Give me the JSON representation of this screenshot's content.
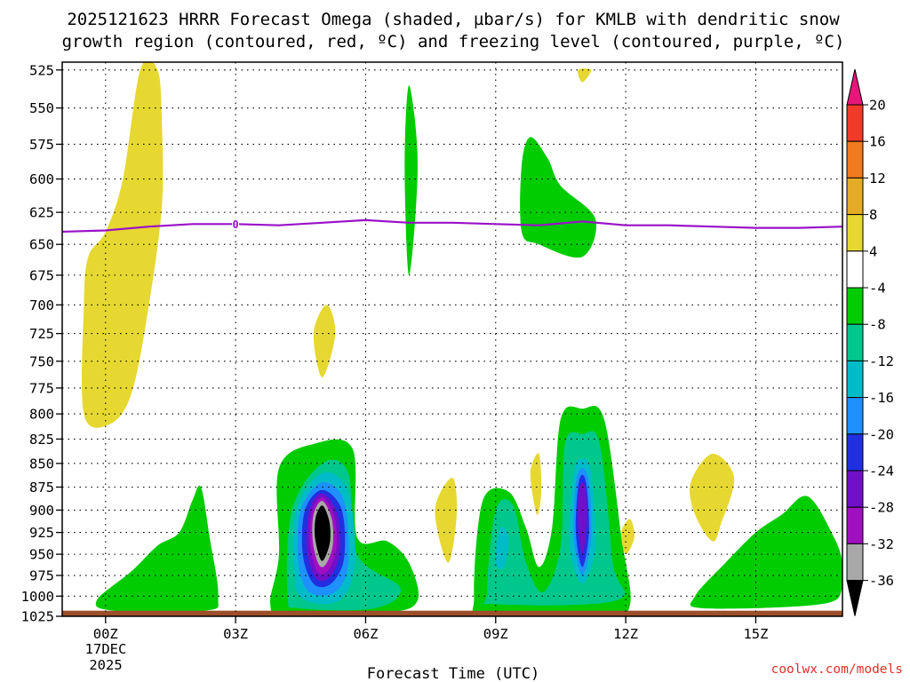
{
  "chart_data": {
    "type": "heatmap",
    "title_line1": "2025121623 HRRR Forecast Omega (shaded, µbar/s) for KMLB with dendritic snow",
    "title_line2": "growth region (contoured, red, ºC) and freezing level (contoured, purple, ºC)",
    "xlabel": "Forecast Time (UTC)",
    "ylabel": "",
    "x_ticks": [
      "00Z",
      "03Z",
      "06Z",
      "09Z",
      "12Z",
      "15Z"
    ],
    "x_tick_hours": [
      0,
      3,
      6,
      9,
      12,
      15
    ],
    "x_date_line1": "17DEC",
    "x_date_line2": "2025",
    "xlim_hours": [
      -1,
      17
    ],
    "y_ticks": [
      525,
      550,
      575,
      600,
      625,
      650,
      675,
      700,
      725,
      750,
      775,
      800,
      825,
      850,
      875,
      900,
      925,
      950,
      975,
      1000,
      1025
    ],
    "ylim_hPa": [
      1025,
      520
    ],
    "y_scale": "log-pressure",
    "colorbar": {
      "labels": [
        "20",
        "16",
        "12",
        "8",
        "4",
        "-4",
        "-8",
        "-12",
        "-16",
        "-20",
        "-24",
        "-28",
        "-32",
        "-36"
      ],
      "bins": [
        {
          "from": 20,
          "to": null,
          "color": "#e8157a"
        },
        {
          "from": 16,
          "to": 20,
          "color": "#f03a2a"
        },
        {
          "from": 12,
          "to": 16,
          "color": "#f07a1e"
        },
        {
          "from": 8,
          "to": 12,
          "color": "#e4ac24"
        },
        {
          "from": 4,
          "to": 8,
          "color": "#e6d830"
        },
        {
          "from": -4,
          "to": 4,
          "color": "#ffffff"
        },
        {
          "from": -8,
          "to": -4,
          "color": "#00cc00"
        },
        {
          "from": -12,
          "to": -8,
          "color": "#00c88c"
        },
        {
          "from": -16,
          "to": -12,
          "color": "#00bcc8"
        },
        {
          "from": -20,
          "to": -16,
          "color": "#1e90ff"
        },
        {
          "from": -24,
          "to": -20,
          "color": "#2030e0"
        },
        {
          "from": -28,
          "to": -24,
          "color": "#7010c8"
        },
        {
          "from": -32,
          "to": -28,
          "color": "#a010c0"
        },
        {
          "from": -36,
          "to": -32,
          "color": "#a8a8a8"
        },
        {
          "from": null,
          "to": -36,
          "color": "#000000"
        }
      ]
    },
    "freezing_level": {
      "color": "#9a10c8",
      "points_hour_hpa": [
        [
          -1,
          640
        ],
        [
          0,
          639
        ],
        [
          1,
          636
        ],
        [
          2,
          634
        ],
        [
          3,
          634
        ],
        [
          4,
          635
        ],
        [
          5,
          633
        ],
        [
          6,
          631
        ],
        [
          7,
          633
        ],
        [
          8,
          633
        ],
        [
          9,
          634
        ],
        [
          10,
          635
        ],
        [
          11,
          632
        ],
        [
          12,
          635
        ],
        [
          13,
          635
        ],
        [
          14,
          636
        ],
        [
          15,
          637
        ],
        [
          16,
          637
        ],
        [
          17,
          636
        ]
      ],
      "label": "0",
      "label_point_hour_hpa": [
        3,
        634
      ]
    },
    "omega_features": [
      {
        "name": "pos-column-00z",
        "level_color": "#e6d830",
        "points": [
          [
            -0.5,
            800
          ],
          [
            -0.5,
            700
          ],
          [
            -0.4,
            660
          ],
          [
            0,
            640
          ],
          [
            0.4,
            600
          ],
          [
            0.8,
            525
          ],
          [
            1.2,
            525
          ],
          [
            1.3,
            560
          ],
          [
            1.3,
            620
          ],
          [
            1.0,
            700
          ],
          [
            0.6,
            780
          ],
          [
            0.1,
            810
          ]
        ]
      },
      {
        "name": "pos-blob-05z",
        "level_color": "#e6d830",
        "points": [
          [
            4.8,
            725
          ],
          [
            5.1,
            700
          ],
          [
            5.3,
            725
          ],
          [
            5.0,
            765
          ]
        ]
      },
      {
        "name": "neg-spike-07z",
        "level_color": "#00cc00",
        "points": [
          [
            6.9,
            590
          ],
          [
            7.0,
            535
          ],
          [
            7.2,
            590
          ],
          [
            7.0,
            675
          ]
        ]
      },
      {
        "name": "neg-blob-10z",
        "level_color": "#00cc00",
        "points": [
          [
            9.6,
            640
          ],
          [
            9.6,
            590
          ],
          [
            9.8,
            570
          ],
          [
            10.2,
            585
          ],
          [
            10.5,
            605
          ],
          [
            11.3,
            630
          ],
          [
            11.0,
            660
          ],
          [
            10.0,
            650
          ]
        ]
      },
      {
        "name": "pos-top-11z",
        "level_color": "#e6d830",
        "points": [
          [
            10.9,
            525
          ],
          [
            11.2,
            525
          ],
          [
            11.0,
            533
          ]
        ]
      },
      {
        "name": "neg-base-01z",
        "level_color": "#00cc00",
        "points": [
          [
            -0.2,
            1005
          ],
          [
            0.6,
            970
          ],
          [
            1.2,
            940
          ],
          [
            1.7,
            925
          ],
          [
            2.0,
            890
          ],
          [
            2.2,
            875
          ],
          [
            2.4,
            930
          ],
          [
            2.6,
            1000
          ],
          [
            2.3,
            1018
          ],
          [
            0.2,
            1018
          ]
        ]
      },
      {
        "name": "neg-core-05z",
        "level_color": "#00cc00",
        "points": [
          [
            3.8,
            1010
          ],
          [
            4.0,
            950
          ],
          [
            4.0,
            855
          ],
          [
            4.8,
            830
          ],
          [
            5.7,
            835
          ],
          [
            5.8,
            930
          ],
          [
            6.5,
            935
          ],
          [
            7.0,
            960
          ],
          [
            7.2,
            1005
          ],
          [
            6.5,
            1020
          ],
          [
            4.2,
            1020
          ]
        ]
      },
      {
        "name": "neg-core-05z-l2",
        "level_color": "#00c88c",
        "points": [
          [
            4.2,
            1000
          ],
          [
            4.3,
            900
          ],
          [
            5.0,
            850
          ],
          [
            5.6,
            860
          ],
          [
            5.8,
            950
          ],
          [
            6.8,
            990
          ],
          [
            6.2,
            1015
          ],
          [
            4.5,
            1015
          ]
        ]
      },
      {
        "name": "neg-core-05z-l3",
        "level_color": "#00bcc8",
        "points": [
          [
            4.35,
            975
          ],
          [
            4.4,
            900
          ],
          [
            5.0,
            860
          ],
          [
            5.6,
            880
          ],
          [
            5.75,
            960
          ],
          [
            5.4,
            1005
          ],
          [
            4.6,
            1005
          ]
        ]
      },
      {
        "name": "neg-core-05z-l4",
        "level_color": "#1e90ff",
        "points": [
          [
            4.45,
            960
          ],
          [
            4.5,
            900
          ],
          [
            5.0,
            870
          ],
          [
            5.5,
            890
          ],
          [
            5.6,
            960
          ],
          [
            5.3,
            995
          ],
          [
            4.7,
            995
          ]
        ]
      },
      {
        "name": "neg-core-05z-l5",
        "level_color": "#2030e0",
        "points": [
          [
            4.55,
            950
          ],
          [
            4.6,
            900
          ],
          [
            5.0,
            878
          ],
          [
            5.45,
            900
          ],
          [
            5.5,
            955
          ],
          [
            5.2,
            985
          ],
          [
            4.8,
            985
          ]
        ]
      },
      {
        "name": "neg-core-05z-l6",
        "level_color": "#7010c8",
        "points": [
          [
            4.65,
            945
          ],
          [
            4.7,
            900
          ],
          [
            5.0,
            882
          ],
          [
            5.35,
            905
          ],
          [
            5.4,
            950
          ],
          [
            5.15,
            978
          ],
          [
            4.85,
            978
          ]
        ]
      },
      {
        "name": "neg-core-05z-l7",
        "level_color": "#a010c0",
        "points": [
          [
            4.72,
            940
          ],
          [
            4.76,
            903
          ],
          [
            5.0,
            886
          ],
          [
            5.28,
            908
          ],
          [
            5.32,
            945
          ],
          [
            5.12,
            970
          ],
          [
            4.88,
            970
          ]
        ]
      },
      {
        "name": "neg-core-05z-l8",
        "level_color": "#a8a8a8",
        "points": [
          [
            4.78,
            935
          ],
          [
            4.8,
            905
          ],
          [
            5.0,
            890
          ],
          [
            5.22,
            910
          ],
          [
            5.24,
            940
          ],
          [
            5.08,
            962
          ],
          [
            4.92,
            962
          ]
        ]
      },
      {
        "name": "neg-core-05z-l9",
        "level_color": "#000000",
        "points": [
          [
            4.83,
            930
          ],
          [
            4.85,
            908
          ],
          [
            5.0,
            895
          ],
          [
            5.16,
            912
          ],
          [
            5.18,
            935
          ],
          [
            5.05,
            955
          ],
          [
            4.95,
            955
          ]
        ]
      },
      {
        "name": "pos-blob-08z",
        "level_color": "#e6d830",
        "points": [
          [
            7.6,
            900
          ],
          [
            8.0,
            865
          ],
          [
            8.1,
            905
          ],
          [
            7.9,
            960
          ]
        ]
      },
      {
        "name": "pos-sliver-10z",
        "level_color": "#e6d830",
        "points": [
          [
            9.8,
            860
          ],
          [
            10.0,
            840
          ],
          [
            10.05,
            880
          ],
          [
            9.95,
            905
          ]
        ]
      },
      {
        "name": "neg-w-1011z",
        "level_color": "#00cc00",
        "points": [
          [
            8.5,
            1000
          ],
          [
            8.7,
            890
          ],
          [
            9.3,
            880
          ],
          [
            9.7,
            920
          ],
          [
            10.0,
            965
          ],
          [
            10.3,
            920
          ],
          [
            10.5,
            805
          ],
          [
            11.0,
            795
          ],
          [
            11.5,
            805
          ],
          [
            11.9,
            930
          ],
          [
            12.1,
            1010
          ],
          [
            11.5,
            1020
          ],
          [
            8.8,
            1020
          ]
        ]
      },
      {
        "name": "neg-w-1011z-l2",
        "level_color": "#00c88c",
        "points": [
          [
            8.8,
            995
          ],
          [
            9.0,
            900
          ],
          [
            9.4,
            895
          ],
          [
            9.7,
            960
          ],
          [
            10.1,
            995
          ],
          [
            10.5,
            940
          ],
          [
            10.6,
            830
          ],
          [
            11.0,
            820
          ],
          [
            11.4,
            830
          ],
          [
            11.7,
            960
          ],
          [
            11.8,
            1005
          ],
          [
            9.0,
            1010
          ]
        ]
      },
      {
        "name": "neg-w-1011z-l3",
        "level_color": "#00bcc8",
        "points": [
          [
            9.0,
            960
          ],
          [
            9.1,
            920
          ],
          [
            9.3,
            930
          ],
          [
            9.2,
            965
          ]
        ]
      },
      {
        "name": "neg-core-11z-l3",
        "level_color": "#00bcc8",
        "points": [
          [
            10.7,
            940
          ],
          [
            10.8,
            860
          ],
          [
            11.0,
            845
          ],
          [
            11.2,
            860
          ],
          [
            11.3,
            940
          ],
          [
            11.0,
            985
          ]
        ]
      },
      {
        "name": "neg-core-11z-l4",
        "level_color": "#1e90ff",
        "points": [
          [
            10.8,
            930
          ],
          [
            10.85,
            870
          ],
          [
            11.0,
            855
          ],
          [
            11.15,
            870
          ],
          [
            11.2,
            930
          ],
          [
            11.0,
            975
          ]
        ]
      },
      {
        "name": "neg-core-11z-l5",
        "level_color": "#2030e0",
        "points": [
          [
            10.85,
            925
          ],
          [
            10.9,
            875
          ],
          [
            11.0,
            862
          ],
          [
            11.1,
            875
          ],
          [
            11.15,
            925
          ],
          [
            11.0,
            965
          ]
        ]
      },
      {
        "name": "neg-core-11z-l6",
        "level_color": "#7010c8",
        "points": [
          [
            10.9,
            915
          ],
          [
            10.92,
            880
          ],
          [
            11.0,
            870
          ],
          [
            11.08,
            880
          ],
          [
            11.1,
            915
          ],
          [
            11.0,
            950
          ]
        ]
      },
      {
        "name": "pos-blob-12z",
        "level_color": "#e6d830",
        "points": [
          [
            11.9,
            925
          ],
          [
            12.1,
            910
          ],
          [
            12.2,
            930
          ],
          [
            12.0,
            950
          ]
        ]
      },
      {
        "name": "pos-blob-14z",
        "level_color": "#e6d830",
        "points": [
          [
            13.5,
            870
          ],
          [
            14.0,
            840
          ],
          [
            14.5,
            865
          ],
          [
            14.2,
            915
          ],
          [
            14.0,
            935
          ],
          [
            13.6,
            905
          ]
        ]
      },
      {
        "name": "neg-blob-16z",
        "level_color": "#00cc00",
        "points": [
          [
            13.6,
            1000
          ],
          [
            14.3,
            960
          ],
          [
            15.0,
            925
          ],
          [
            15.6,
            905
          ],
          [
            16.2,
            885
          ],
          [
            16.8,
            930
          ],
          [
            17.0,
            960
          ],
          [
            17.0,
            990
          ],
          [
            16.5,
            1010
          ],
          [
            13.8,
            1015
          ]
        ]
      }
    ],
    "ground_band": {
      "from_hpa": 1018,
      "to_hpa": 1025,
      "color": "#9c4f2a"
    }
  },
  "credit": "coolwx.com/models"
}
